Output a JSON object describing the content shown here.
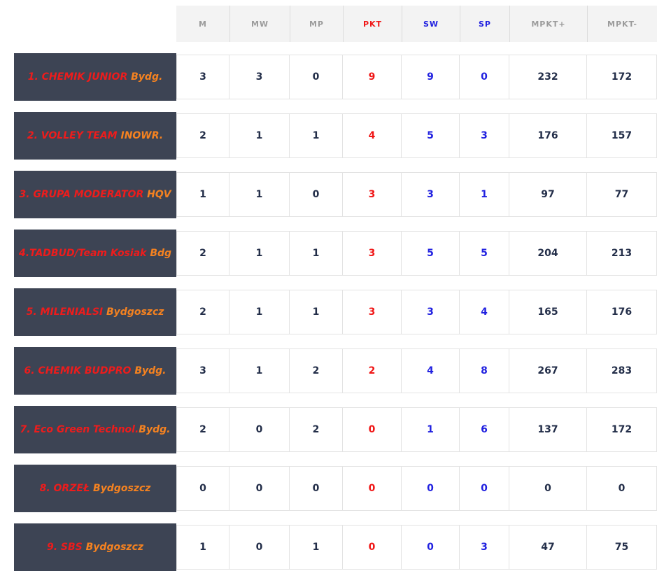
{
  "colors": {
    "name_plate_bg": "#3d4454",
    "team_name_red": "#ed1c1c",
    "team_city_orange": "#f58220",
    "stat_red": "#f01616",
    "stat_blue": "#2020e0",
    "stat_navy": "#232e49",
    "header_text_gray": "#9b9b9b",
    "header_bg": "#f3f3f3",
    "cell_border": "#e3e3e3"
  },
  "table": {
    "columns": [
      {
        "label": "M",
        "color": "gray"
      },
      {
        "label": "MW",
        "color": "gray"
      },
      {
        "label": "MP",
        "color": "gray"
      },
      {
        "label": "PKT",
        "color": "red"
      },
      {
        "label": "SW",
        "color": "blue"
      },
      {
        "label": "SP",
        "color": "blue"
      },
      {
        "label": "MPKT+",
        "color": "gray"
      },
      {
        "label": "MPKT-",
        "color": "gray"
      }
    ],
    "rows": [
      {
        "name": "1. CHEMIK JUNIOR",
        "suffix": " Bydg.",
        "values": [
          "3",
          "3",
          "0",
          "9",
          "9",
          "0",
          "232",
          "172"
        ]
      },
      {
        "name": "2. VOLLEY TEAM",
        "suffix": " INOWR.",
        "values": [
          "2",
          "1",
          "1",
          "4",
          "5",
          "3",
          "176",
          "157"
        ]
      },
      {
        "name": "3. GRUPA MODERATOR",
        "suffix": " HQV",
        "values": [
          "1",
          "1",
          "0",
          "3",
          "3",
          "1",
          "97",
          "77"
        ]
      },
      {
        "name": "4.TADBUD/Team Kosiak",
        "suffix": " Bdg",
        "values": [
          "2",
          "1",
          "1",
          "3",
          "5",
          "5",
          "204",
          "213"
        ]
      },
      {
        "name": "5. MILENIALSI",
        "suffix": " Bydgoszcz",
        "values": [
          "2",
          "1",
          "1",
          "3",
          "3",
          "4",
          "165",
          "176"
        ]
      },
      {
        "name": "6. CHEMIK BUDPRO",
        "suffix": " Bydg.",
        "values": [
          "3",
          "1",
          "2",
          "2",
          "4",
          "8",
          "267",
          "283"
        ]
      },
      {
        "name": "7. Eco Green Technol.",
        "suffix": "Bydg.",
        "values": [
          "2",
          "0",
          "2",
          "0",
          "1",
          "6",
          "137",
          "172"
        ]
      },
      {
        "name": "8. ORZEŁ",
        "suffix": " Bydgoszcz",
        "values": [
          "0",
          "0",
          "0",
          "0",
          "0",
          "0",
          "0",
          "0"
        ]
      },
      {
        "name": "9. SBS",
        "suffix": " Bydgoszcz",
        "values": [
          "1",
          "0",
          "1",
          "0",
          "0",
          "3",
          "47",
          "75"
        ]
      }
    ]
  }
}
